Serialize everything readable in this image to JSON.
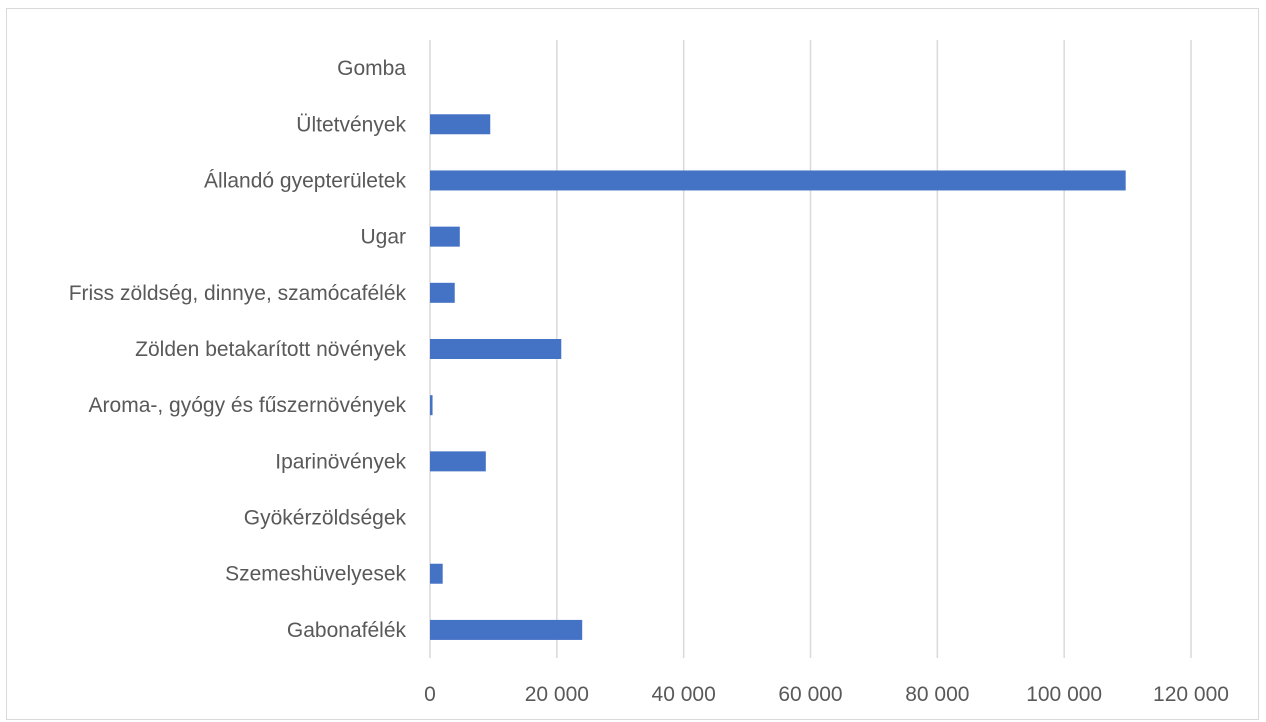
{
  "chart_data": {
    "type": "bar",
    "orientation": "horizontal",
    "categories": [
      "Gomba",
      "Ültetvények",
      "Állandó gyepterületek",
      "Ugar",
      "Friss zöldség, dinnye, szamócafélék",
      "Zölden betakarított növények",
      "Aroma-, gyógy és fűszernövények",
      "Iparinövények",
      "Gyökérzöldségek",
      "Szemeshüvelyesek",
      "Gabonafélék"
    ],
    "values": [
      0,
      9500,
      109700,
      4700,
      3900,
      20700,
      400,
      8800,
      0,
      2000,
      24000
    ],
    "xlim": [
      0,
      120000
    ],
    "xticks": [
      0,
      20000,
      40000,
      60000,
      80000,
      100000,
      120000
    ],
    "xtick_labels": [
      "0",
      "20 000",
      "40 000",
      "60 000",
      "80 000",
      "100 000",
      "120 000"
    ],
    "grid": "vertical",
    "legend": "none",
    "colors": {
      "bar": "#4472c4",
      "grid": "#d9d9d9",
      "text": "#595959"
    }
  }
}
